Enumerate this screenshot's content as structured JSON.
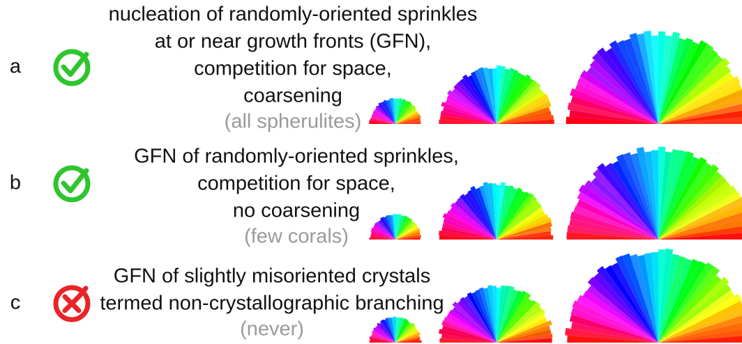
{
  "rows": [
    {
      "label": "a",
      "lines": [
        "nucleation of randomly-oriented sprinkles",
        "at or near growth fronts (GFN),",
        "competition for space,",
        "coarsening"
      ],
      "note": "(all spherulites)"
    },
    {
      "label": "b",
      "lines": [
        "GFN of randomly-oriented sprinkles,",
        "competition for space,",
        "no coarsening"
      ],
      "note": "(few corals)"
    },
    {
      "label": "c",
      "lines": [
        "GFN of slightly misoriented crystals",
        "termed non-crystallographic branching"
      ],
      "note": "(never)"
    }
  ]
}
